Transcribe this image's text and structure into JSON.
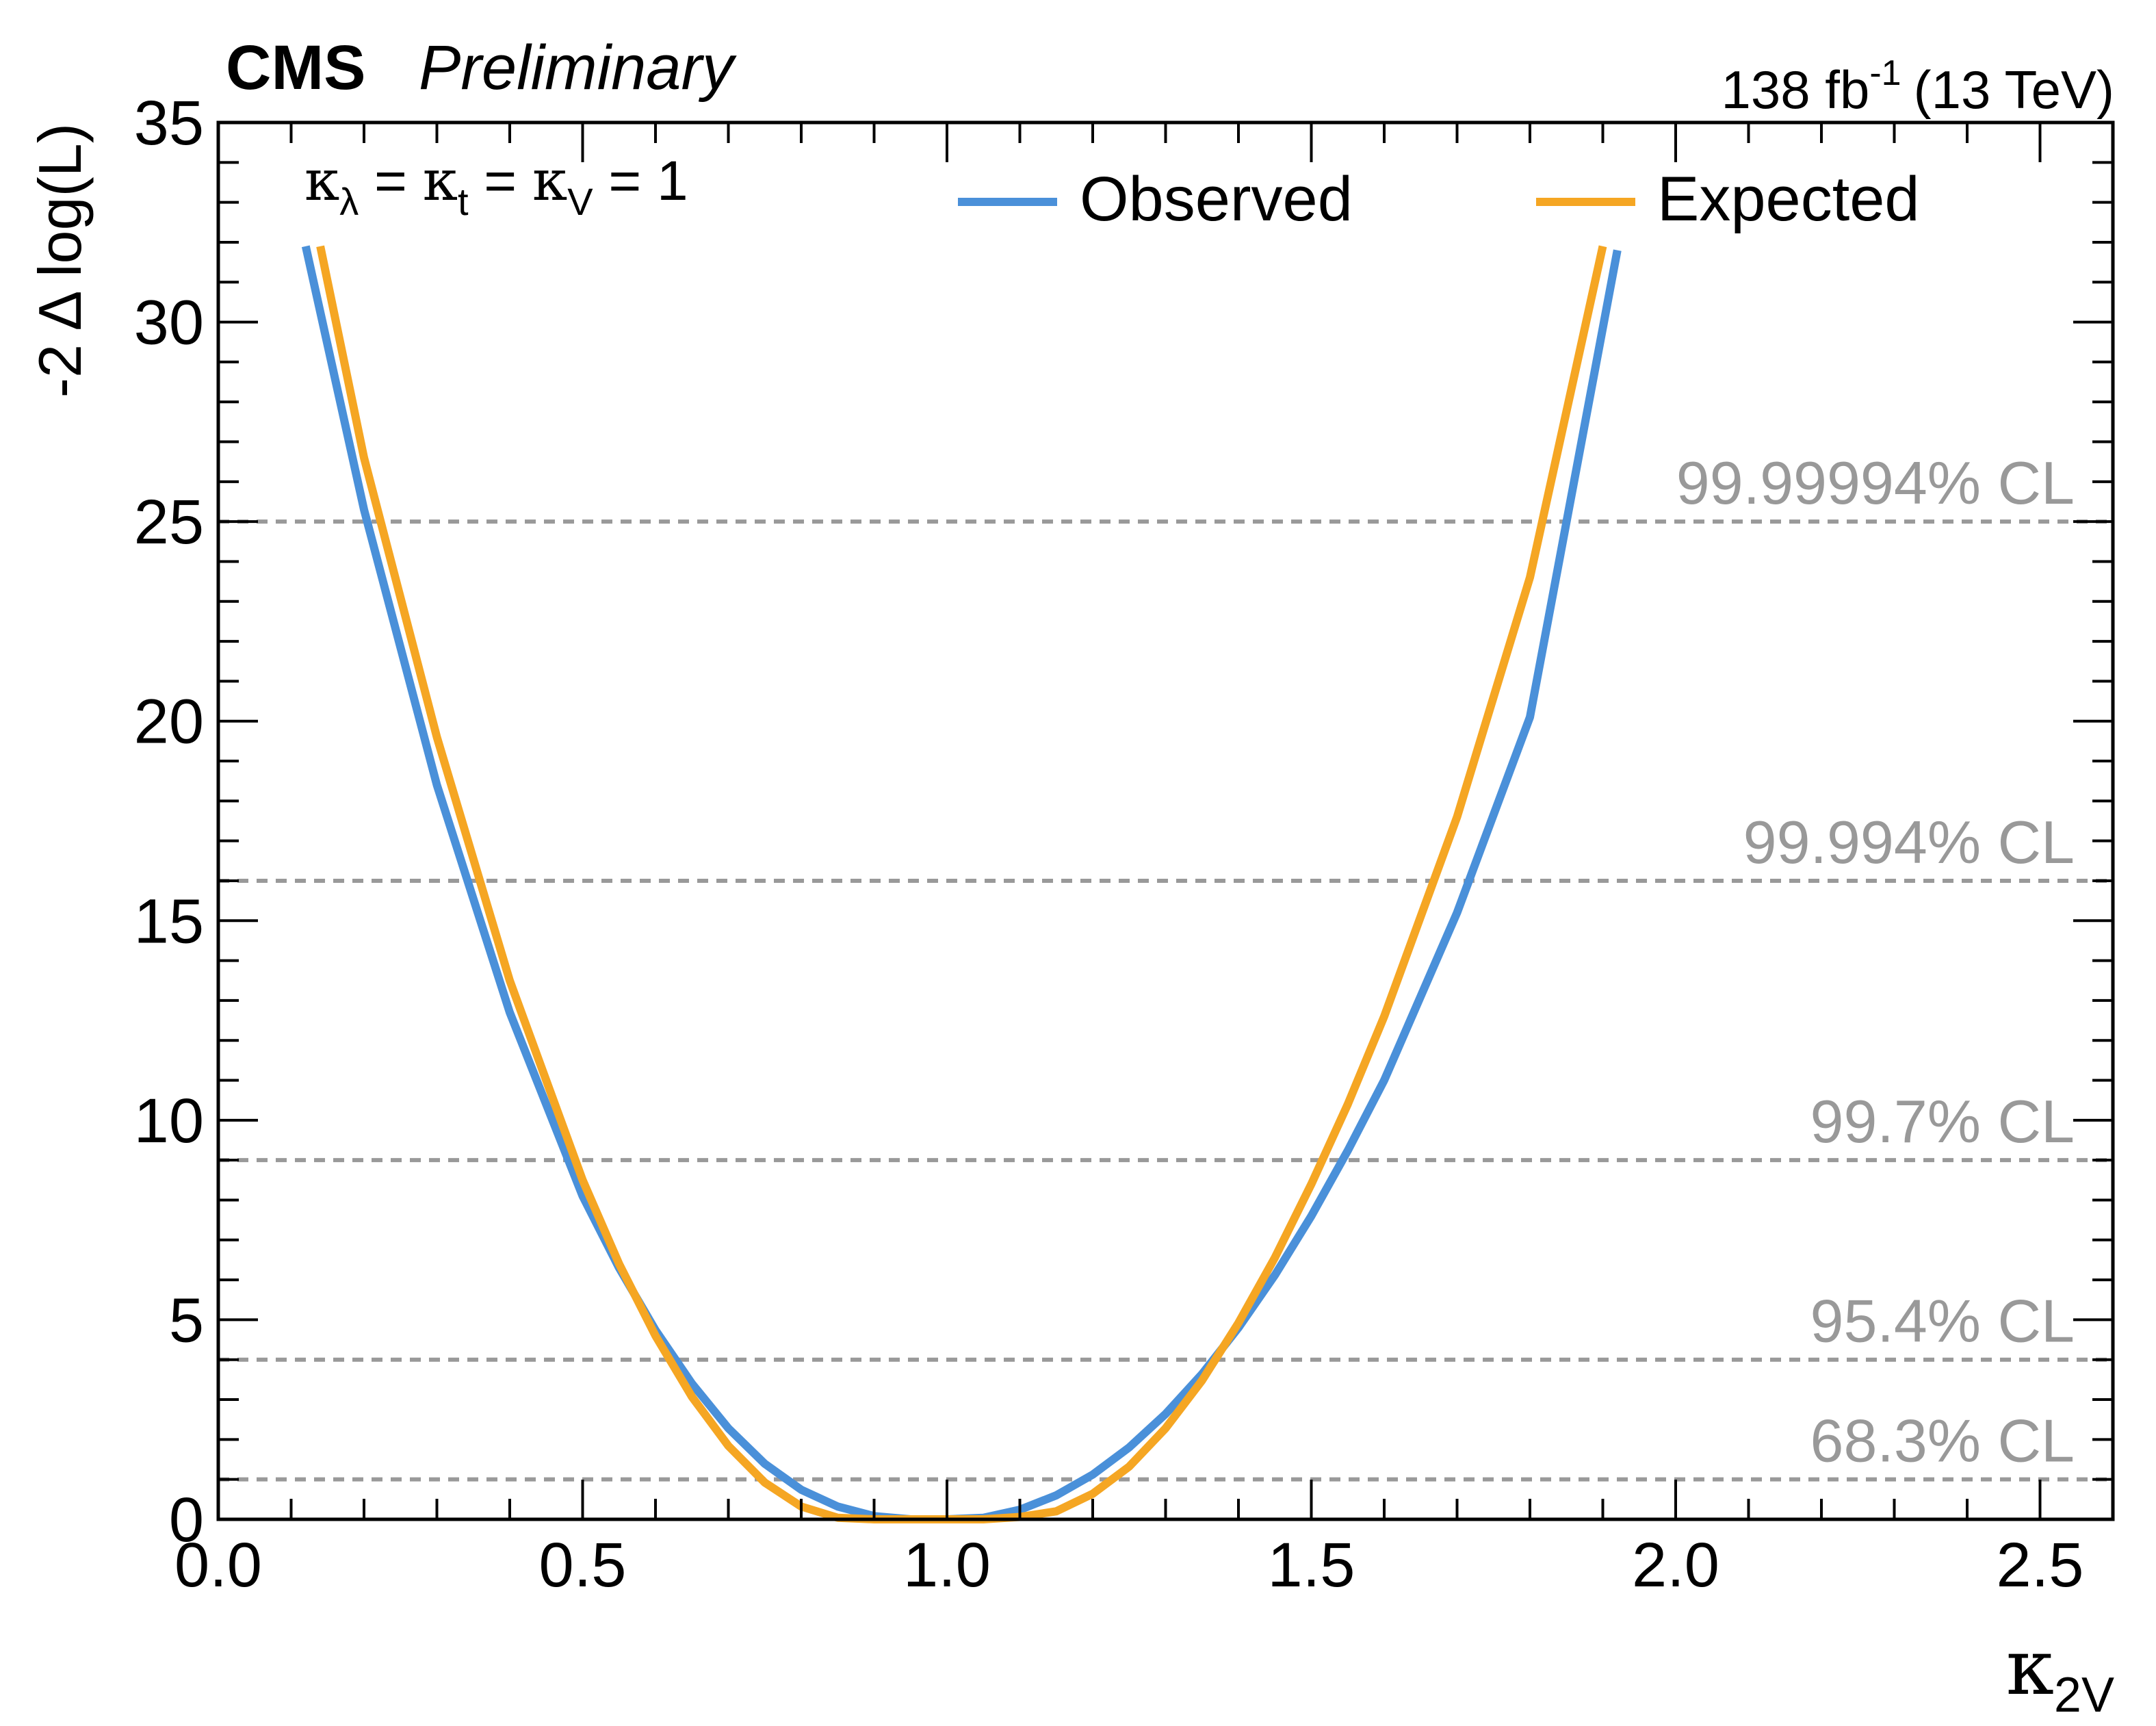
{
  "header": {
    "experiment": "CMS",
    "status": "Preliminary",
    "lumi": "138 fb",
    "lumi_exp": "-1",
    "energy": "(13 TeV)"
  },
  "annotation": {
    "k": "κ",
    "sub_lambda": "λ",
    "sub_t": "t",
    "sub_v": "V",
    "eq": " = ",
    "value": " = 1"
  },
  "colors": {
    "observed": "#4a90d9",
    "expected": "#f5a623",
    "cl_line": "#999999",
    "cl_text": "#999999",
    "axis": "#000000"
  },
  "chart_data": {
    "type": "line",
    "title": "",
    "xlabel": "κ",
    "xlabel_sub": "2V",
    "ylabel": "-2 Δ log(L)",
    "xlim": [
      0.0,
      2.6
    ],
    "ylim": [
      0,
      35
    ],
    "xticks": [
      0.0,
      0.5,
      1.0,
      1.5,
      2.0,
      2.5
    ],
    "xtick_labels": [
      "0.0",
      "0.5",
      "1.0",
      "1.5",
      "2.0",
      "2.5"
    ],
    "yticks": [
      0,
      5,
      10,
      15,
      20,
      25,
      30,
      35
    ],
    "ytick_labels": [
      "0",
      "5",
      "10",
      "15",
      "20",
      "25",
      "30",
      "35"
    ],
    "legend": {
      "placement": "top-center",
      "entries": [
        "Observed",
        "Expected"
      ]
    },
    "cl_lines": [
      {
        "y": 1,
        "label": "68.3% CL"
      },
      {
        "y": 4,
        "label": "95.4% CL"
      },
      {
        "y": 9,
        "label": "99.7% CL"
      },
      {
        "y": 16,
        "label": "99.994% CL"
      },
      {
        "y": 25,
        "label": "99.99994% CL"
      }
    ],
    "series": [
      {
        "name": "Observed",
        "x": [
          0.12,
          0.2,
          0.3,
          0.4,
          0.5,
          0.55,
          0.6,
          0.65,
          0.7,
          0.75,
          0.8,
          0.85,
          0.9,
          0.95,
          1.0,
          1.05,
          1.1,
          1.15,
          1.2,
          1.25,
          1.3,
          1.35,
          1.4,
          1.45,
          1.5,
          1.55,
          1.6,
          1.7,
          1.8,
          1.92
        ],
        "y": [
          31.9,
          25.3,
          18.4,
          12.7,
          8.1,
          6.3,
          4.74,
          3.4,
          2.28,
          1.39,
          0.74,
          0.32,
          0.08,
          0.0,
          0.0,
          0.04,
          0.24,
          0.6,
          1.12,
          1.8,
          2.64,
          3.64,
          4.8,
          6.12,
          7.6,
          9.24,
          11.0,
          15.2,
          20.1,
          31.8
        ]
      },
      {
        "name": "Expected",
        "x": [
          0.14,
          0.2,
          0.3,
          0.4,
          0.5,
          0.55,
          0.6,
          0.65,
          0.7,
          0.75,
          0.8,
          0.85,
          0.9,
          0.95,
          1.0,
          1.05,
          1.1,
          1.15,
          1.2,
          1.25,
          1.3,
          1.35,
          1.4,
          1.45,
          1.5,
          1.55,
          1.6,
          1.7,
          1.8,
          1.9
        ],
        "y": [
          31.9,
          26.6,
          19.6,
          13.5,
          8.5,
          6.4,
          4.6,
          3.07,
          1.84,
          0.92,
          0.32,
          0.04,
          0.0,
          0.0,
          0.0,
          0.0,
          0.06,
          0.2,
          0.64,
          1.32,
          2.28,
          3.48,
          4.92,
          6.56,
          8.4,
          10.4,
          12.6,
          17.6,
          23.6,
          31.9
        ]
      }
    ]
  }
}
